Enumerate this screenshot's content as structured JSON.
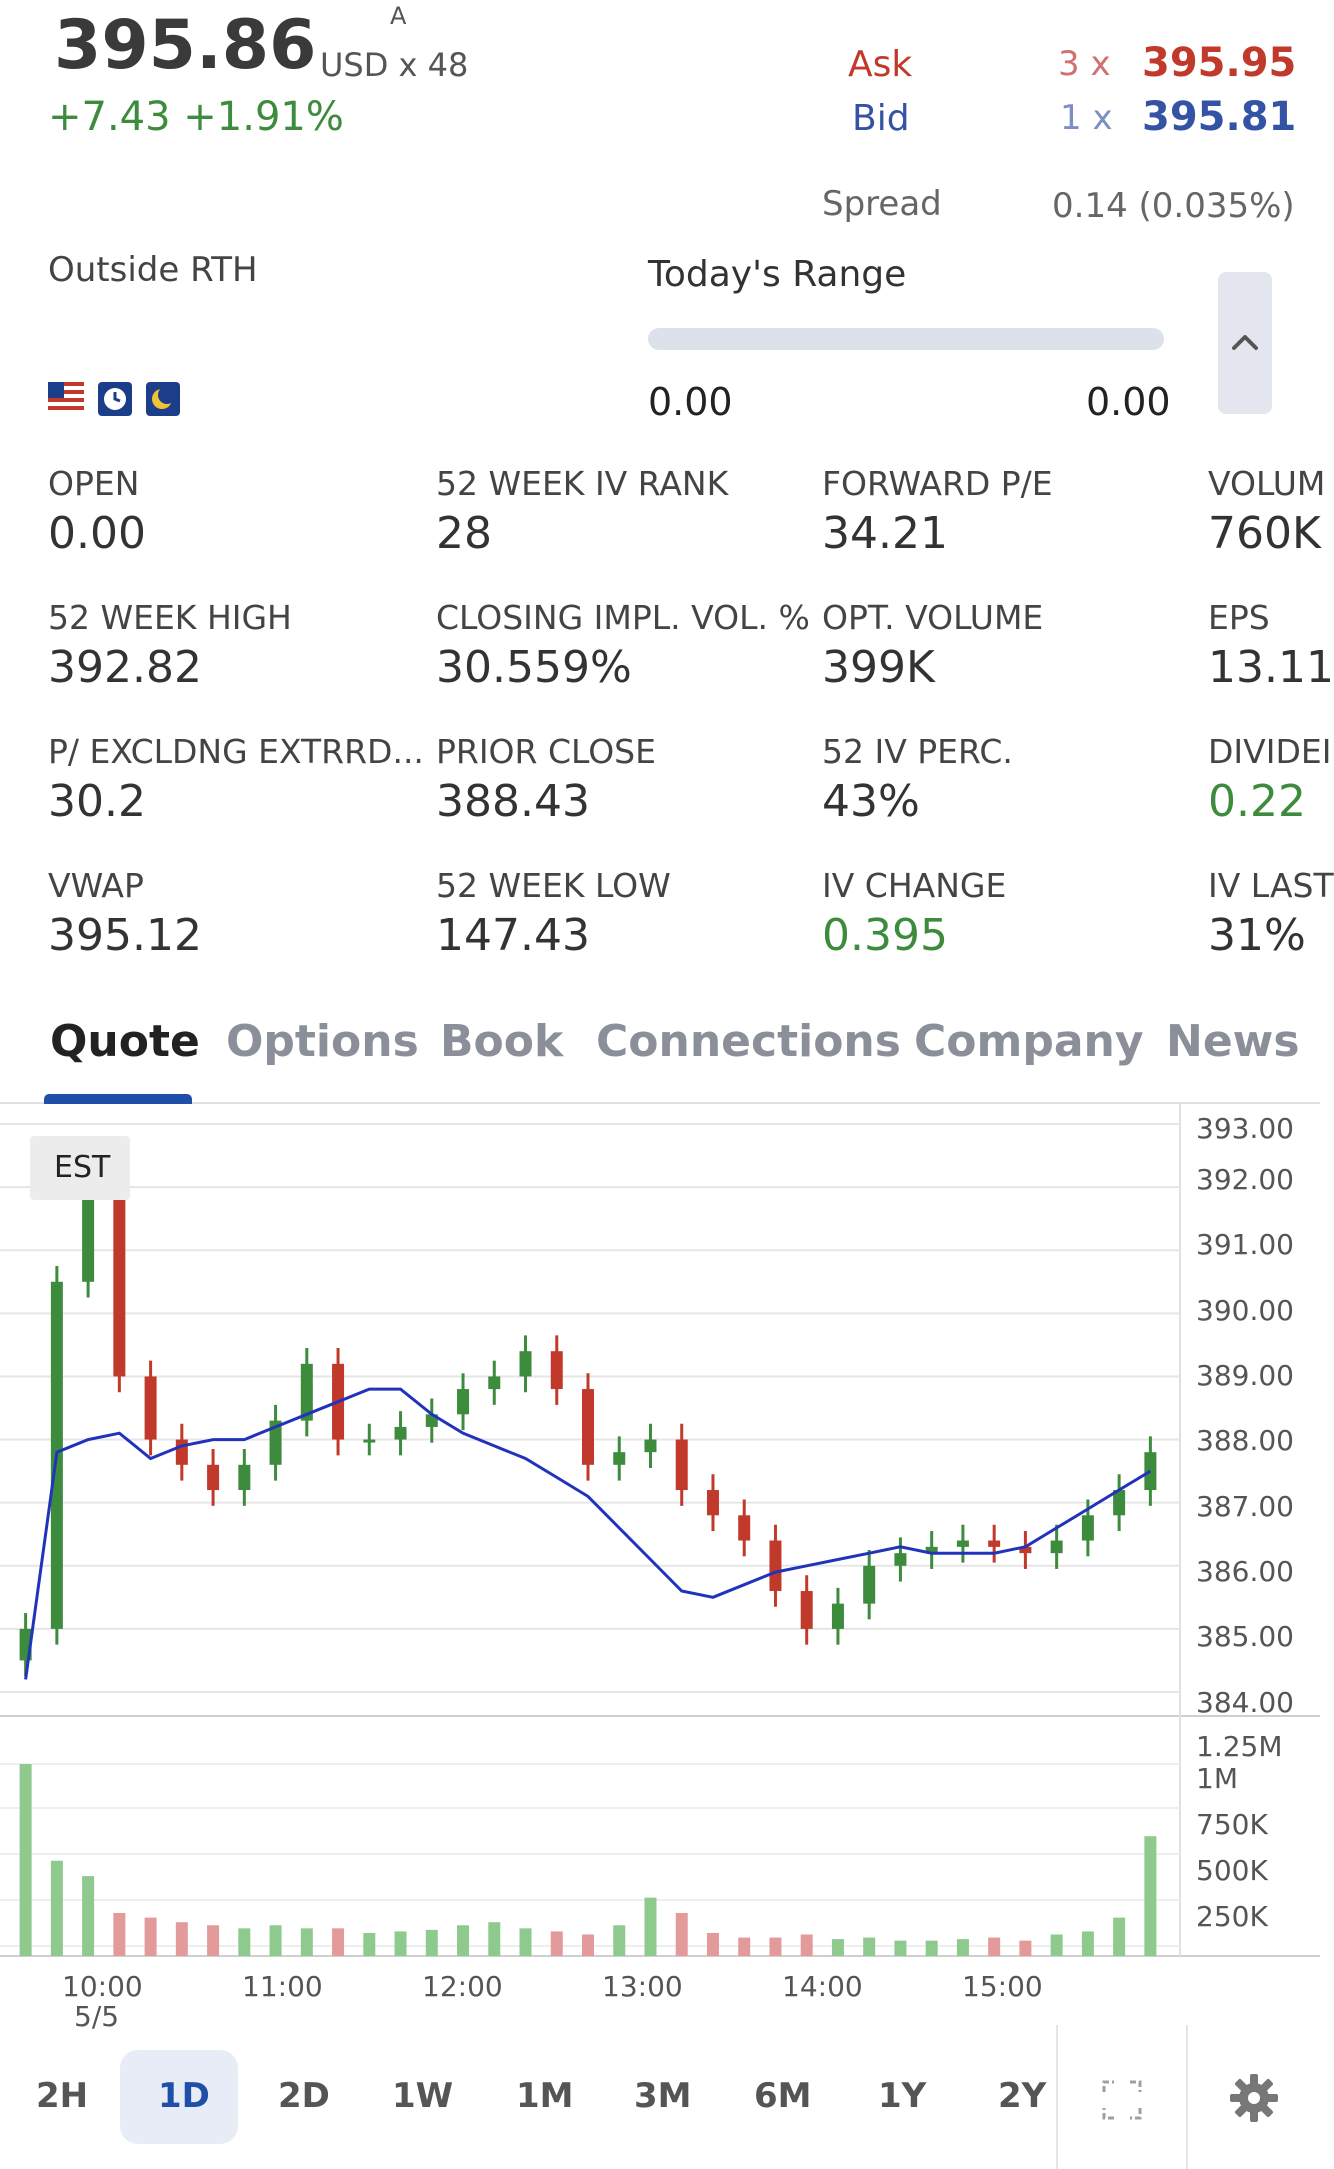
{
  "header": {
    "last_price": "395.86",
    "exchange": "A",
    "currency_size": "USD  x  48",
    "change": "+7.43  +1.91%",
    "ask_label": "Ask",
    "ask_size": "3  x",
    "ask_price": "395.95",
    "bid_label": "Bid",
    "bid_size": "1  x",
    "bid_price": "395.81",
    "spread_label": "Spread",
    "spread_value": "0.14 (0.035%)",
    "session_label": "Outside RTH",
    "range_label": "Today's Range",
    "range_low": "0.00",
    "range_high": "0.00"
  },
  "stats": [
    {
      "label": "OPEN",
      "value": "0.00",
      "color": "default"
    },
    {
      "label": "52 WEEK IV RANK",
      "value": "28",
      "color": "default"
    },
    {
      "label": "FORWARD P/E",
      "value": "34.21",
      "color": "default"
    },
    {
      "label": "VOLUM",
      "value": "760K",
      "color": "default"
    },
    {
      "label": "52 WEEK HIGH",
      "value": "392.82",
      "color": "default"
    },
    {
      "label": "CLOSING IMPL. VOL. %",
      "value": "30.559%",
      "color": "default"
    },
    {
      "label": "OPT. VOLUME",
      "value": "399K",
      "color": "default"
    },
    {
      "label": "EPS",
      "value": "13.11",
      "color": "default"
    },
    {
      "label": "P/ EXCLDNG EXTRRD...",
      "value": "30.2",
      "color": "default"
    },
    {
      "label": "PRIOR CLOSE",
      "value": "388.43",
      "color": "default"
    },
    {
      "label": "52 IV PERC.",
      "value": "43%",
      "color": "default"
    },
    {
      "label": "DIVIDEI",
      "value": "0.22",
      "color": "green"
    },
    {
      "label": "VWAP",
      "value": "395.12",
      "color": "default"
    },
    {
      "label": "52 WEEK LOW",
      "value": "147.43",
      "color": "default"
    },
    {
      "label": "IV CHANGE",
      "value": "0.395",
      "color": "green"
    },
    {
      "label": "IV LAST",
      "value": "31%",
      "color": "default"
    }
  ],
  "tabs": [
    "Quote",
    "Options",
    "Book",
    "Connections",
    "Company",
    "News"
  ],
  "active_tab": "Quote",
  "chart": {
    "timezone_label": "EST",
    "price_labels": [
      "393.00",
      "392.00",
      "391.00",
      "390.00",
      "389.00",
      "388.00",
      "387.00",
      "386.00",
      "385.00",
      "384.00"
    ],
    "volume_labels": [
      "1.25M",
      "1M",
      "750K",
      "500K",
      "250K"
    ],
    "time_labels": [
      "10:00",
      "11:00",
      "12:00",
      "13:00",
      "14:00",
      "15:00"
    ],
    "date_label": "5/5"
  },
  "chart_data": {
    "type": "candlestick",
    "price_axis": {
      "min": 384,
      "max": 393,
      "ticks": [
        393,
        392,
        391,
        390,
        389,
        388,
        387,
        386,
        385,
        384
      ]
    },
    "volume_axis": {
      "ticks": [
        "1.25M",
        "1M",
        "750K",
        "500K",
        "250K"
      ]
    },
    "x_axis": {
      "labels": [
        "10:00",
        "11:00",
        "12:00",
        "13:00",
        "14:00",
        "15:00"
      ],
      "date": "5/5"
    },
    "moving_average": [
      384.2,
      387.8,
      388.0,
      388.1,
      387.7,
      387.9,
      388.0,
      388.0,
      388.2,
      388.4,
      388.6,
      388.8,
      388.8,
      388.4,
      388.1,
      387.9,
      387.7,
      387.4,
      387.1,
      386.6,
      386.1,
      385.6,
      385.5,
      385.7,
      385.9,
      386.0,
      386.1,
      386.2,
      386.3,
      386.2,
      386.2,
      386.2,
      386.3,
      386.6,
      386.9,
      387.2,
      387.5
    ],
    "candles_close": [
      385.0,
      390.5,
      392.4,
      389.0,
      388.0,
      387.6,
      387.2,
      387.6,
      388.3,
      389.2,
      388.0,
      388.0,
      388.2,
      388.4,
      388.8,
      389.0,
      389.4,
      388.8,
      387.6,
      387.8,
      388.0,
      387.2,
      386.8,
      386.4,
      385.6,
      385.0,
      385.4,
      386.0,
      386.2,
      386.3,
      386.4,
      386.3,
      386.2,
      386.4,
      386.8,
      387.2,
      387.8
    ],
    "volume": [
      1.25,
      0.62,
      0.52,
      0.28,
      0.25,
      0.22,
      0.2,
      0.18,
      0.2,
      0.18,
      0.18,
      0.15,
      0.16,
      0.17,
      0.2,
      0.22,
      0.18,
      0.16,
      0.14,
      0.2,
      0.38,
      0.28,
      0.15,
      0.12,
      0.12,
      0.14,
      0.11,
      0.12,
      0.1,
      0.1,
      0.11,
      0.12,
      0.1,
      0.14,
      0.16,
      0.25,
      0.78
    ]
  },
  "timeframes": [
    "2H",
    "1D",
    "2D",
    "1W",
    "1M",
    "3M",
    "6M",
    "1Y",
    "2Y"
  ],
  "active_timeframe": "1D",
  "icons": {
    "collapse": "chevron-up-icon",
    "fullscreen": "fullscreen-icon",
    "settings": "gear-icon",
    "flag": "us-flag-icon",
    "clock": "clock-icon",
    "moon": "moon-icon"
  },
  "colors": {
    "up": "#3d8b3d",
    "down": "#c0392b",
    "ma": "#2233bb",
    "accent": "#1f4fa8"
  }
}
